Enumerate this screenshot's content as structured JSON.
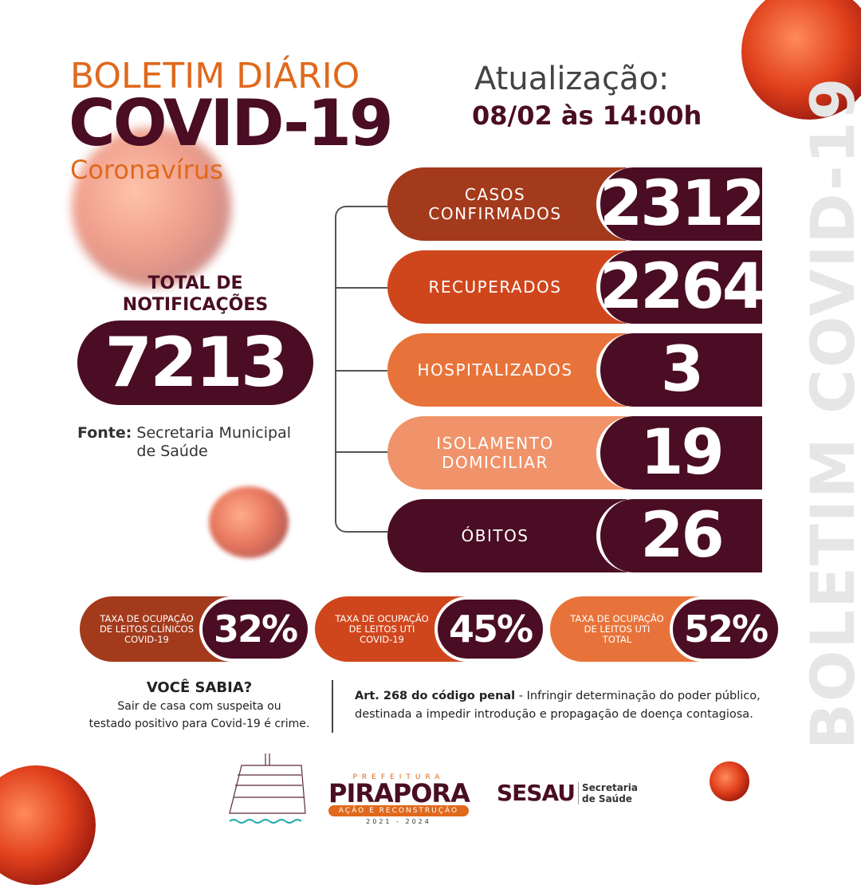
{
  "header": {
    "line1": "BOLETIM DIÁRIO",
    "line2": "COVID-19",
    "line3": "Coronavírus",
    "update_label": "Atualização:",
    "update_time": "08/02 às 14:00h"
  },
  "side_text": "BOLETIM COVID-19",
  "total": {
    "label1": "TOTAL DE",
    "label2": "NOTIFICAÇÕES",
    "value": "7213"
  },
  "source": {
    "label": "Fonte:",
    "text1": "Secretaria Municipal",
    "text2": "de Saúde"
  },
  "stats": [
    {
      "label1": "CASOS",
      "label2": "CONFIRMADOS",
      "value": "2312",
      "color": "#a43a1c"
    },
    {
      "label1": "RECUPERADOS",
      "label2": "",
      "value": "2264",
      "color": "#d0461c"
    },
    {
      "label1": "HOSPITALIZADOS",
      "label2": "",
      "value": "3",
      "color": "#e8733a"
    },
    {
      "label1": "ISOLAMENTO",
      "label2": "DOMICILIAR",
      "value": "19",
      "color": "#f0936a"
    },
    {
      "label1": "ÓBITOS",
      "label2": "",
      "value": "26",
      "color": "#4a0d24"
    }
  ],
  "rates": [
    {
      "l1": "TAXA DE OCUPAÇÃO",
      "l2": "DE LEITOS CLÍNICOS",
      "l3": "COVID-19",
      "value": "32%",
      "color": "#a43a1c"
    },
    {
      "l1": "TAXA DE OCUPAÇÃO",
      "l2": "DE LEITOS UTI",
      "l3": "COVID-19",
      "value": "45%",
      "color": "#d0461c"
    },
    {
      "l1": "TAXA DE OCUPAÇÃO",
      "l2": "DE LEITOS UTI",
      "l3": "TOTAL",
      "value": "52%",
      "color": "#e8733a"
    }
  ],
  "info": {
    "title": "VOCÊ SABIA?",
    "text1": "Sair de casa com suspeita ou",
    "text2": "testado positivo para Covid-19 é crime.",
    "law_bold": "Art. 268 do código penal",
    "law_text1": " - Infringir determinação do poder público,",
    "law_text2": "destinada a impedir introdução e propagação de doença contagiosa."
  },
  "footer": {
    "prefeitura": "PREFEITURA",
    "city": "PIRAPORA",
    "slogan": "AÇÃO E RECONSTRUÇÃO",
    "years": "2021 - 2024",
    "sesau": "SESAU",
    "sec1": "Secretaria",
    "sec2": "de Saúde"
  }
}
